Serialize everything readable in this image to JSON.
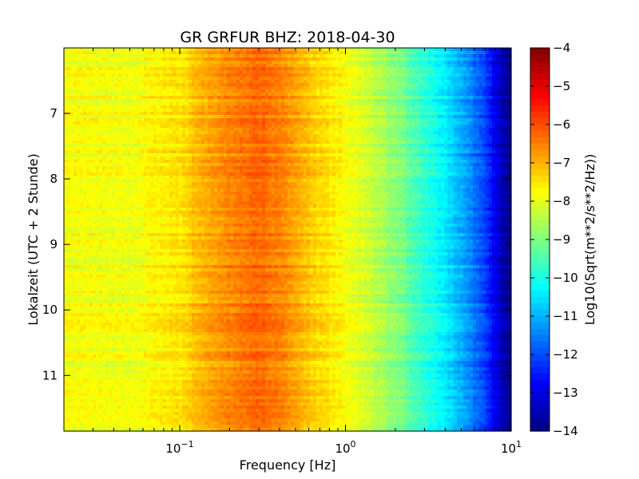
{
  "chart_data": {
    "type": "heatmap",
    "title": "GR GRFUR BHZ: 2018-04-30",
    "xlabel": "Frequency [Hz]",
    "ylabel": "Lokalzeit (UTC + 2 Stunde)",
    "x_scale": "log",
    "xlim": [
      0.02,
      10
    ],
    "ylim": [
      6.0,
      11.85
    ],
    "y_inverted": true,
    "x_ticks": [
      {
        "value": 0.1,
        "base": "10",
        "exp": "−1"
      },
      {
        "value": 1,
        "base": "10",
        "exp": "0"
      },
      {
        "value": 10,
        "base": "10",
        "exp": "1"
      }
    ],
    "y_ticks": [
      {
        "value": 7,
        "label": "7"
      },
      {
        "value": 8,
        "label": "8"
      },
      {
        "value": 9,
        "label": "9"
      },
      {
        "value": 10,
        "label": "10"
      },
      {
        "value": 11,
        "label": "11"
      }
    ],
    "colormap": "jet",
    "colorbar": {
      "label": "Log10(Sqrt(m**2/s**2/Hz))",
      "min": -14,
      "max": -4,
      "ticks": [
        {
          "value": -4,
          "label": "−4"
        },
        {
          "value": -5,
          "label": "−5"
        },
        {
          "value": -6,
          "label": "−6"
        },
        {
          "value": -7,
          "label": "−7"
        },
        {
          "value": -8,
          "label": "−8"
        },
        {
          "value": -9,
          "label": "−9"
        },
        {
          "value": -10,
          "label": "−10"
        },
        {
          "value": -11,
          "label": "−11"
        },
        {
          "value": -12,
          "label": "−12"
        },
        {
          "value": -13,
          "label": "−13"
        },
        {
          "value": -14,
          "label": "−14"
        }
      ]
    },
    "spectrum_profile": {
      "frequency_hz": [
        0.02,
        0.05,
        0.1,
        0.15,
        0.2,
        0.25,
        0.3,
        0.4,
        0.6,
        1.0,
        1.5,
        2.0,
        3.0,
        5.0,
        7.0,
        9.0,
        10.0
      ],
      "value": [
        -7.8,
        -7.9,
        -7.5,
        -6.9,
        -6.6,
        -6.4,
        -6.3,
        -6.5,
        -7.2,
        -7.8,
        -8.4,
        -8.9,
        -9.8,
        -11.0,
        -12.2,
        -13.6,
        -14.0
      ]
    }
  }
}
